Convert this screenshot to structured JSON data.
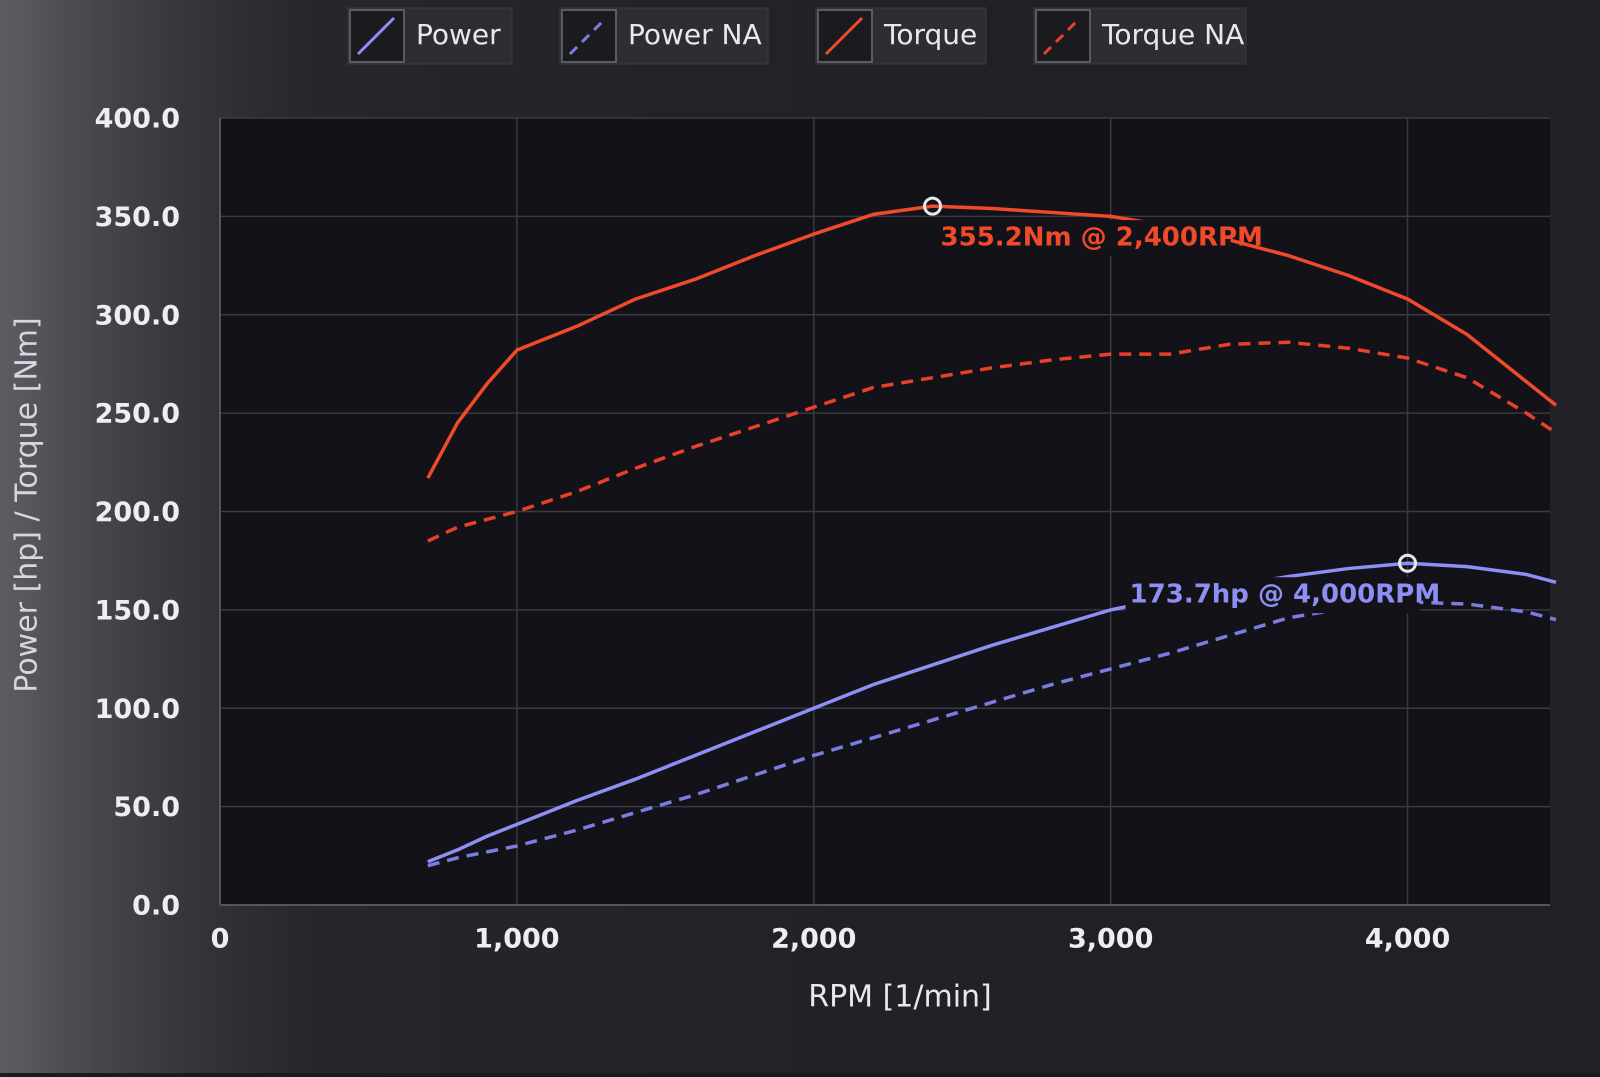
{
  "chart_data": {
    "type": "line",
    "x": [
      700,
      800,
      900,
      1000,
      1200,
      1400,
      1600,
      1800,
      2000,
      2200,
      2400,
      2600,
      2800,
      3000,
      3200,
      3400,
      3600,
      3800,
      4000,
      4200,
      4400,
      4500
    ],
    "series": [
      {
        "name": "Power",
        "color": "#8d8ff2",
        "dash": false,
        "values": [
          22,
          28,
          35,
          41,
          53,
          64,
          76,
          88,
          100,
          112,
          122,
          132,
          141,
          150,
          156,
          162,
          167,
          171,
          173.7,
          172,
          168,
          164
        ]
      },
      {
        "name": "Power NA",
        "color": "#7a7de0",
        "dash": true,
        "values": [
          20,
          24,
          27,
          30,
          38,
          47,
          56,
          66,
          76,
          85,
          94,
          103,
          112,
          120,
          128,
          137,
          146,
          151,
          154,
          153,
          149,
          145
        ]
      },
      {
        "name": "Torque",
        "color": "#f04a2a",
        "dash": false,
        "values": [
          217,
          245,
          265,
          282,
          294,
          308,
          318,
          330,
          341,
          351,
          355.2,
          354,
          352,
          350,
          345,
          338,
          330,
          320,
          308,
          290,
          266,
          254
        ]
      },
      {
        "name": "Torque NA",
        "color": "#e8402a",
        "dash": true,
        "values": [
          185,
          192,
          196,
          200,
          210,
          222,
          233,
          243,
          253,
          263,
          268,
          273,
          277,
          280,
          280,
          285,
          286,
          283,
          278,
          268,
          250,
          240
        ]
      }
    ],
    "xlim": [
      0,
      4500
    ],
    "xticks": [
      0,
      {
        "value": 1000,
        "label": "1,000"
      },
      {
        "value": 2000,
        "label": "2,000"
      },
      {
        "value": 3000,
        "label": "3,000"
      },
      {
        "value": 4000,
        "label": "4,000"
      }
    ],
    "ylim": [
      0,
      400
    ],
    "yticks": [
      {
        "value": 0,
        "label": "0.0"
      },
      {
        "value": 50,
        "label": "50.0"
      },
      {
        "value": 100,
        "label": "100.0"
      },
      {
        "value": 150,
        "label": "150.0"
      },
      {
        "value": 200,
        "label": "200.0"
      },
      {
        "value": 250,
        "label": "250.0"
      },
      {
        "value": 300,
        "label": "300.0"
      },
      {
        "value": 350,
        "label": "350.0"
      },
      {
        "value": 400,
        "label": "400.0"
      }
    ],
    "grid": true,
    "x_label": "RPM [1/min]",
    "y_label": "Power [hp] / Torque [Nm]",
    "peaks": [
      {
        "x": 2400,
        "y": 355.2,
        "label": "355.2Nm @ 2,400RPM",
        "color": "#f04a2a"
      },
      {
        "x": 4000,
        "y": 173.7,
        "label": "173.7hp @ 4,000RPM",
        "color": "#8d8ff2"
      }
    ]
  }
}
